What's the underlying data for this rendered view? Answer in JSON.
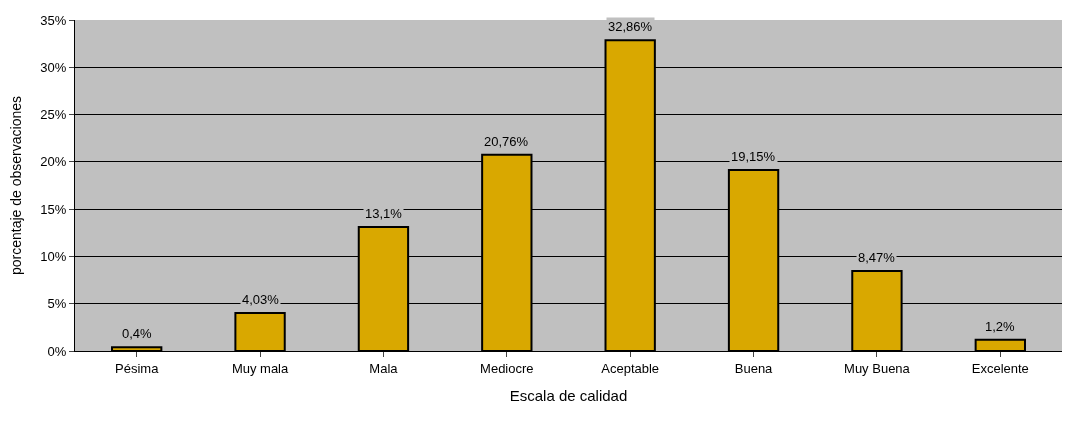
{
  "chart_data": {
    "type": "bar",
    "xlabel": "Escala de calidad",
    "ylabel": "porcentaje de observaciones",
    "categories": [
      "Pésima",
      "Muy mala",
      "Mala",
      "Mediocre",
      "Aceptable",
      "Buena",
      "Muy Buena",
      "Excelente"
    ],
    "values": [
      0.4,
      4.03,
      13.1,
      20.76,
      32.86,
      19.15,
      8.47,
      1.2
    ],
    "value_labels": [
      "0,4%",
      "4,03%",
      "13,1%",
      "20,76%",
      "32,86%",
      "19,15%",
      "8,47%",
      "1,2%"
    ],
    "color": "#d9a800",
    "ylim": [
      0,
      35
    ],
    "yticks": [
      {
        "value": 0,
        "label": "0%"
      },
      {
        "value": 5,
        "label": "5%"
      },
      {
        "value": 10,
        "label": "10%"
      },
      {
        "value": 15,
        "label": "15%"
      },
      {
        "value": 20,
        "label": "20%"
      },
      {
        "value": 25,
        "label": "25%"
      },
      {
        "value": 30,
        "label": "30%"
      },
      {
        "value": 35,
        "label": "35%"
      }
    ],
    "grid": "y",
    "legend": false
  }
}
